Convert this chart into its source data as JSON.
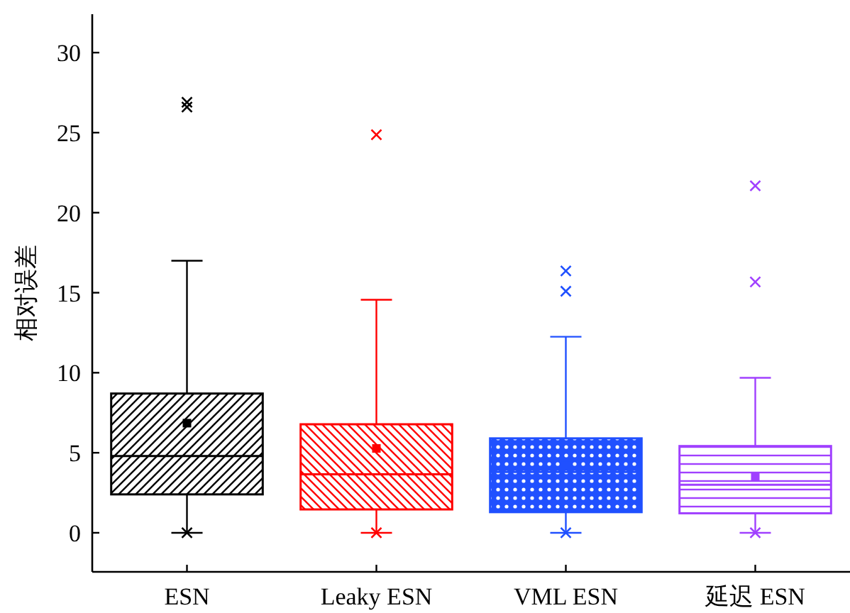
{
  "chart_data": {
    "type": "box",
    "ylabel": "相对误差",
    "categories": [
      "ESN",
      "Leaky ESN",
      "VML ESN",
      "延迟 ESN"
    ],
    "colors": [
      "#000000",
      "#ff0000",
      "#2050ff",
      "#a040ff"
    ],
    "boxes": [
      {
        "low": 0,
        "q1": 2.4,
        "median": 4.8,
        "q3": 8.7,
        "high": 17.0,
        "mean": 6.85,
        "outliers": [
          0,
          26.6,
          26.9
        ]
      },
      {
        "low": 0,
        "q1": 1.46,
        "median": 3.65,
        "q3": 6.78,
        "high": 14.56,
        "mean": 5.27,
        "outliers": [
          0,
          24.87
        ]
      },
      {
        "low": 0,
        "q1": 1.29,
        "median": 3.8,
        "q3": 5.9,
        "high": 12.25,
        "mean": 4.18,
        "outliers": [
          0,
          15.09,
          16.36
        ]
      },
      {
        "low": 0,
        "q1": 1.22,
        "median": 3.0,
        "q3": 5.42,
        "high": 9.68,
        "mean": 3.5,
        "outliers": [
          0,
          15.67,
          21.68
        ]
      }
    ],
    "ylim": [
      -2.44,
      32.4
    ],
    "yticks": [
      0,
      5,
      10,
      15,
      20,
      25,
      30
    ]
  }
}
